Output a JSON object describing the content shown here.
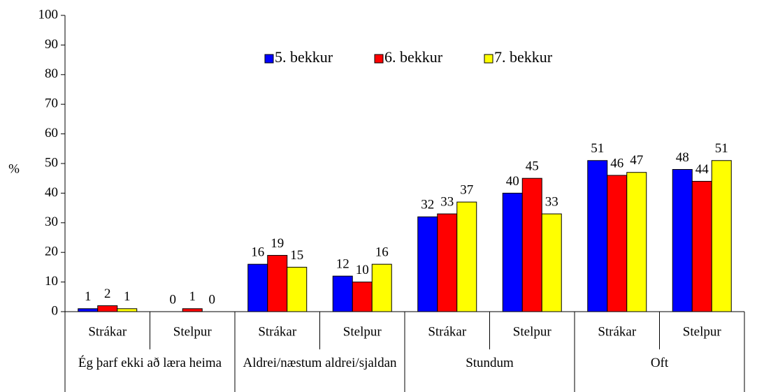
{
  "chart_data": {
    "type": "bar",
    "ylabel": "%",
    "categories": [
      "Strákar",
      "Stelpur",
      "Strákar",
      "Stelpur",
      "Strákar",
      "Stelpur",
      "Strákar",
      "Stelpur"
    ],
    "groups": [
      "Ég þarf ekki að læra heima",
      "Aldrei/næstum aldrei/sjaldan",
      "Stundum",
      "Oft"
    ],
    "series": [
      {
        "name": "5. bekkur",
        "color": "#0000ff",
        "values": [
          1,
          0,
          16,
          12,
          32,
          40,
          51,
          48
        ]
      },
      {
        "name": "6. bekkur",
        "color": "#ff0000",
        "values": [
          2,
          1,
          19,
          10,
          33,
          45,
          46,
          44
        ]
      },
      {
        "name": "7. bekkur",
        "color": "#ffff00",
        "values": [
          1,
          0,
          15,
          16,
          37,
          33,
          47,
          51
        ]
      }
    ],
    "ylim": [
      0,
      100
    ],
    "yticks": [
      0,
      10,
      20,
      30,
      40,
      50,
      60,
      70,
      80,
      90,
      100
    ],
    "legend": "top"
  }
}
